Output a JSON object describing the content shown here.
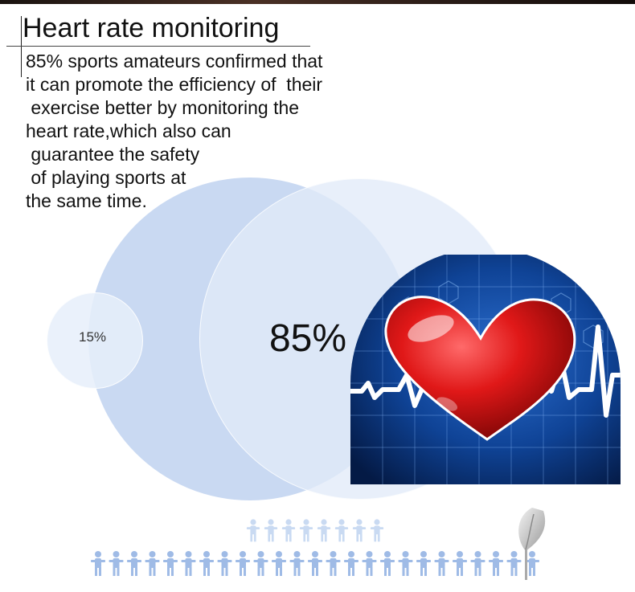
{
  "header": {
    "title": "Heart rate monitoring"
  },
  "description": {
    "lines": [
      "85% sports amateurs confirmed that",
      "it can promote the efficiency of  their",
      " exercise better by monitoring the",
      "heart rate,which also can",
      " guarantee the safety",
      " of playing sports at",
      "the same time."
    ]
  },
  "stats": {
    "small_value": "15%",
    "big_value": "85%"
  },
  "colors": {
    "circle_big": "#bacdee",
    "circle_mid": "#e2ebf8",
    "heart_red": "#e01818",
    "screen_blue": "#0c3a86",
    "people_blue": "#9fbbe6"
  },
  "icons": {
    "heart": "heart-icon",
    "people": "person-icon"
  }
}
